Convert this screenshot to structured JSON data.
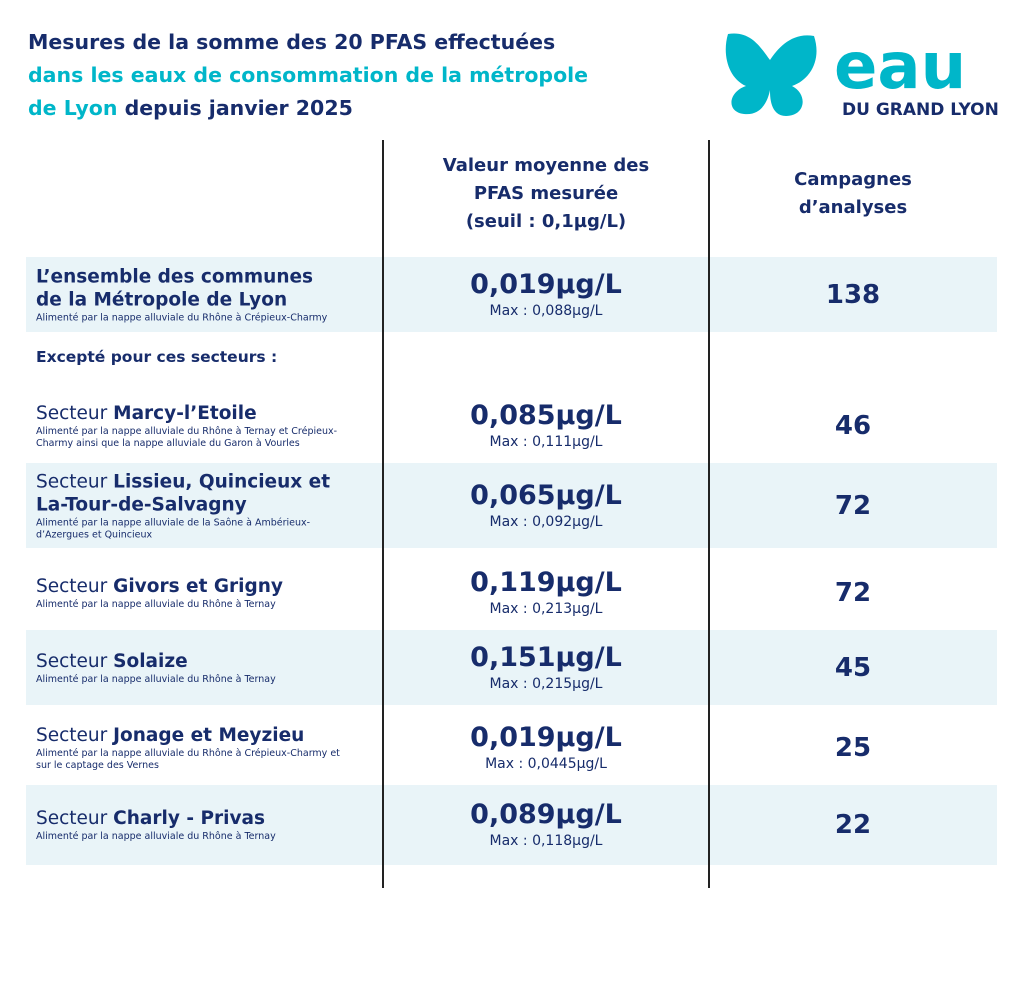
{
  "header": {
    "title": [
      {
        "text": "Mesures de la somme des 20 PFAS effectuées",
        "tone": "dark"
      },
      {
        "text": "dans les eaux de consommation de la métropole",
        "tone": "cyan"
      },
      {
        "text": "de Lyon",
        "tone": "cyan"
      },
      {
        "text": "depuis janvier 2025",
        "tone": "dark"
      }
    ],
    "logo": {
      "word": "eau",
      "subtitle": "DU GRAND LYON"
    }
  },
  "table": {
    "columns": [
      [
        "Valeur moyenne des",
        "PFAS mesurée",
        "(seuil : 0,1µg/L)"
      ],
      [
        "Campagnes",
        "d’analyses"
      ]
    ],
    "section": "Excepté pour ces secteurs :",
    "rows": [
      {
        "name_lines": [
          "L’ensemble des communes",
          "de la Métropole de Lyon"
        ],
        "note": "Alimenté par la nappe alluviale du Rhône à Crépieux-Charmy",
        "value": "0,019µg/L",
        "max": "Max : 0,088µg/L",
        "count": 138
      },
      {
        "prefix": "Secteur",
        "name": "Marcy-l’Etoile",
        "note": "Alimenté par la nappe alluviale du Rhône à Ternay et Crépieux-Charmy ainsi que la nappe alluviale du Garon à Vourles",
        "value": "0,085µg/L",
        "max": "Max : 0,111µg/L",
        "count": 46
      },
      {
        "prefix": "Secteur",
        "name": "Lissieu, Quincieux et La-Tour-de-Salvagny",
        "note": "Alimenté par la nappe alluviale de la Saône à Ambérieux-d’Azergues et Quincieux",
        "value": "0,065µg/L",
        "max": "Max : 0,092µg/L",
        "count": 72
      },
      {
        "prefix": "Secteur",
        "name": "Givors et Grigny",
        "note": "Alimenté par la nappe alluviale du Rhône à Ternay",
        "value": "0,119µg/L",
        "max": "Max : 0,213µg/L",
        "count": 72
      },
      {
        "prefix": "Secteur",
        "name": "Solaize",
        "note": "Alimenté par la nappe alluviale du Rhône à Ternay",
        "value": "0,151µg/L",
        "max": "Max : 0,215µg/L",
        "count": 45
      },
      {
        "prefix": "Secteur",
        "name": "Jonage et Meyzieu",
        "note": "Alimenté par la nappe alluviale du Rhône à Crépieux-Charmy et sur le captage des Vernes",
        "value": "0,019µg/L",
        "max": "Max : 0,0445µg/L",
        "count": 25
      },
      {
        "prefix": "Secteur",
        "name": "Charly - Privas",
        "note": "Alimenté par la nappe alluviale du Rhône à Ternay",
        "value": "0,089µg/L",
        "max": "Max : 0,118µg/L",
        "count": 22
      }
    ]
  }
}
